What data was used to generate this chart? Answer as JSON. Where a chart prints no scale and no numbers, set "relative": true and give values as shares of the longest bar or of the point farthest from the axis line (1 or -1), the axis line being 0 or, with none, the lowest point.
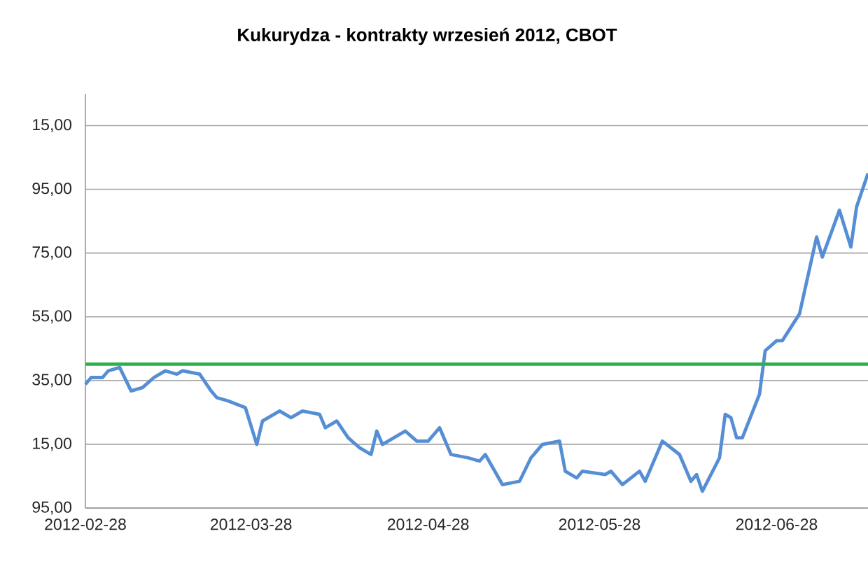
{
  "chart_data": {
    "type": "line",
    "title": "Kukurydza - kontrakty wrzesień 2012, CBOT",
    "relative": true,
    "x": [
      "2012-02-28",
      "2012-02-29",
      "2012-03-02",
      "2012-03-03",
      "2012-03-05",
      "2012-03-07",
      "2012-03-09",
      "2012-03-11",
      "2012-03-13",
      "2012-03-15",
      "2012-03-16",
      "2012-03-19",
      "2012-03-21",
      "2012-03-22",
      "2012-03-24",
      "2012-03-27",
      "2012-03-29",
      "2012-03-30",
      "2012-04-02",
      "2012-04-04",
      "2012-04-06",
      "2012-04-09",
      "2012-04-10",
      "2012-04-12",
      "2012-04-14",
      "2012-04-16",
      "2012-04-18",
      "2012-04-19",
      "2012-04-20",
      "2012-04-24",
      "2012-04-26",
      "2012-04-28",
      "2012-04-30",
      "2012-05-02",
      "2012-05-05",
      "2012-05-07",
      "2012-05-08",
      "2012-05-11",
      "2012-05-14",
      "2012-05-16",
      "2012-05-18",
      "2012-05-21",
      "2012-05-22",
      "2012-05-24",
      "2012-05-25",
      "2012-05-29",
      "2012-05-30",
      "2012-06-01",
      "2012-06-04",
      "2012-06-05",
      "2012-06-08",
      "2012-06-11",
      "2012-06-13",
      "2012-06-14",
      "2012-06-15",
      "2012-06-18",
      "2012-06-19",
      "2012-06-20",
      "2012-06-21",
      "2012-06-22",
      "2012-06-25",
      "2012-06-26",
      "2012-06-28",
      "2012-06-29",
      "2012-07-02",
      "2012-07-05",
      "2012-07-06",
      "2012-07-09",
      "2012-07-11",
      "2012-07-12",
      "2012-07-14"
    ],
    "series": [
      {
        "color": "#558ed5",
        "values": [
          0.37,
          0.39,
          0.39,
          0.41,
          0.42,
          0.35,
          0.36,
          0.39,
          0.41,
          0.4,
          0.41,
          0.4,
          0.35,
          0.33,
          0.32,
          0.3,
          0.19,
          0.26,
          0.29,
          0.27,
          0.29,
          0.28,
          0.24,
          0.26,
          0.21,
          0.18,
          0.16,
          0.23,
          0.19,
          0.23,
          0.2,
          0.2,
          0.24,
          0.16,
          0.15,
          0.14,
          0.16,
          0.07,
          0.08,
          0.15,
          0.19,
          0.2,
          0.11,
          0.09,
          0.11,
          0.1,
          0.11,
          0.07,
          0.11,
          0.08,
          0.2,
          0.16,
          0.08,
          0.1,
          0.05,
          0.15,
          0.28,
          0.27,
          0.21,
          0.21,
          0.34,
          0.47,
          0.5,
          0.5,
          0.58,
          0.81,
          0.75,
          0.89,
          0.78,
          0.9,
          1.0
        ]
      }
    ],
    "xlim": [
      "2012-02-28",
      "2012-07-14"
    ],
    "xticks": [
      "2012-02-28",
      "2012-03-28",
      "2012-04-28",
      "2012-05-28",
      "2012-06-28"
    ],
    "annotations": [
      "95,00",
      "15,00",
      "35,00",
      "55,00",
      "75,00",
      "95,00",
      "15,00"
    ],
    "grid": "y",
    "ref_lines": [
      {
        "axis": "y",
        "value": 0.43,
        "color": "#2eb04a"
      }
    ]
  }
}
